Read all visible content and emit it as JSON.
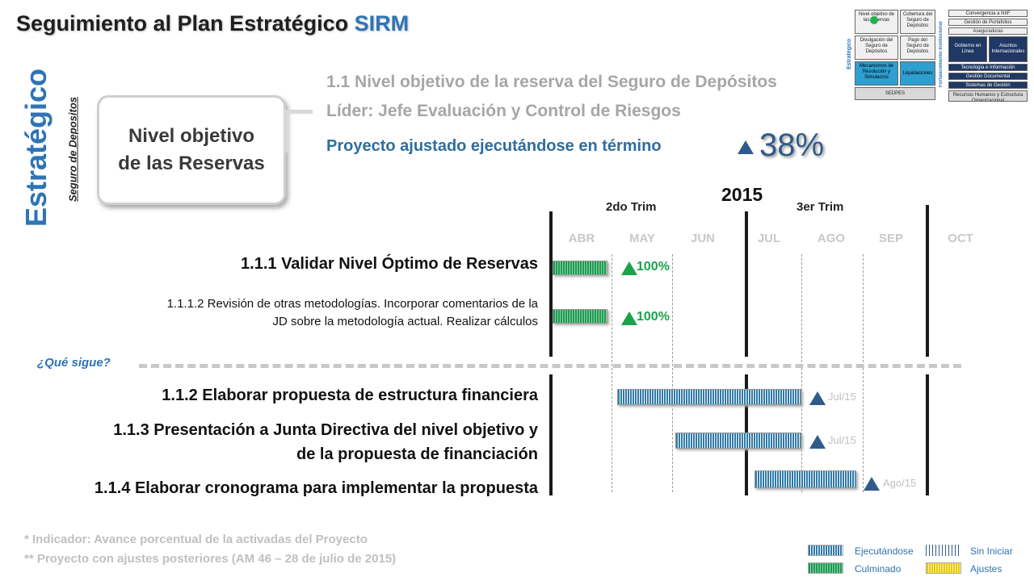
{
  "title": {
    "prefix": "Seguimiento al Plan Estratégico ",
    "accent": "SIRM"
  },
  "side": {
    "big": "Estratégico",
    "small": "Seguro de Depositos"
  },
  "pillbox": {
    "line1": "Nivel objetivo",
    "line2": "de las Reservas"
  },
  "header": {
    "objective": "1.1 Nivel objetivo de la reserva del Seguro de Depósitos",
    "leader": "Líder: Jefe Evaluación y Control de Riesgos",
    "status": "Proyecto ajustado ejecutándose en término",
    "percent": "38%"
  },
  "timeline": {
    "year": "2015",
    "trimesters": [
      "2do Trim",
      "3er Trim"
    ],
    "months": [
      "ABR",
      "MAY",
      "JUN",
      "JUL",
      "AGO",
      "SEP",
      "OCT"
    ]
  },
  "tasks": [
    {
      "label": "1.1.1  Validar Nivel Óptimo de Reservas",
      "marker": "100%",
      "status": "Culminado"
    },
    {
      "label_line1": "1.1.1.2  Revisión de otras metodologías. Incorporar comentarios de la",
      "label_line2": "JD sobre la metodología actual. Realizar cálculos",
      "marker": "100%",
      "status": "Culminado"
    },
    {
      "label": "1.1.2 Elaborar propuesta de estructura financiera",
      "marker": "Jul/15",
      "status": "Ejecutándose"
    },
    {
      "label_line1": "1.1.3 Presentación a Junta Directiva del nivel objetivo y",
      "label_line2": "de la propuesta de financiación",
      "marker": "Jul/15",
      "status": "Ejecutándose"
    },
    {
      "label": "1.1.4 Elaborar cronograma para implementar la propuesta",
      "marker": "Ago/15",
      "status": "Ejecutándose"
    }
  ],
  "next_label": "¿Qué sigue?",
  "notes": [
    "* Indicador: Avance porcentual de la activadas del Proyecto",
    "** Proyecto con ajustes posteriores (AM 46 – 28 de julio de 2015)"
  ],
  "legend": {
    "executing": "Ejecutándose",
    "not_started": "Sin Iniciar",
    "finished": "Culminado",
    "adjustments": "Ajustes"
  },
  "minimap": {
    "side_left": "Estratégico",
    "side_right": "Fortalecimiento Institucional",
    "cells": [
      "Nivel objetivo de las reservas",
      "Cobertura del Seguro de Depósitos",
      "Divulgación del Seguro de Depósitos",
      "Pago del Seguro de Depósitos",
      "Mecanismos de Resolución y Simulacros",
      "Liquidaciones",
      "SEDPES",
      "Convergencia a NIIF",
      "Gestión de Portafolios",
      "Aseguradoras",
      "Gobierno en Línea",
      "Asuntos Internacionales",
      "Tecnología e Información",
      "Gestión Documental",
      "Sistemas de Gestión",
      "Recursos Humanos y Estructura Organizacional"
    ]
  },
  "colors": {
    "accent": "#2e74b5",
    "executing_bar": "#2f7aa8",
    "finished_bar": "#1d9a52",
    "marker_blue": "#2e5b8a",
    "marker_green": "#1aa34a"
  }
}
